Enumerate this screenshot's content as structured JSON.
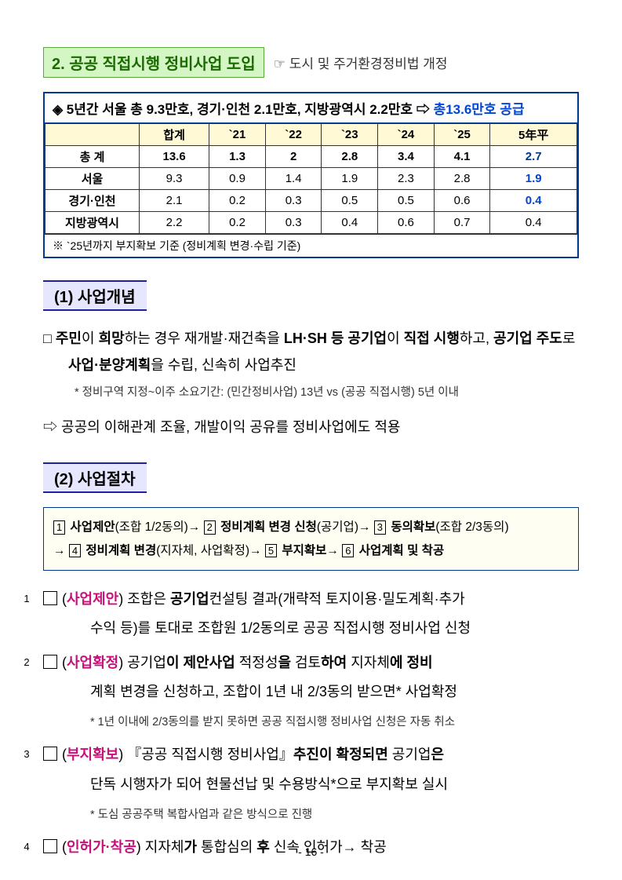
{
  "title": {
    "main": "2. 공공 직접시행 정비사업 도입",
    "sub_prefix": "☞",
    "sub": "도시 및 주거환경정비법 개정"
  },
  "summary": {
    "header_pre": "◈ 5년간 서울 총 9.3만호, 경기·인천 2.1만호, 지방광역시 2.2만호 ⇨ ",
    "header_em": "총13.6만호 공급",
    "columns": [
      "",
      "합계",
      "`21",
      "`22",
      "`23",
      "`24",
      "`25",
      "5年平"
    ],
    "rows": [
      {
        "label": "총 계",
        "vals": [
          "13.6",
          "1.3",
          "2",
          "2.8",
          "3.4",
          "4.1",
          "2.7"
        ],
        "bold": true,
        "avgClass": "avg"
      },
      {
        "label": "서울",
        "vals": [
          "9.3",
          "0.9",
          "1.4",
          "1.9",
          "2.3",
          "2.8",
          "1.9"
        ],
        "avgClass": "blue-bold"
      },
      {
        "label": "경기·인천",
        "vals": [
          "2.1",
          "0.2",
          "0.3",
          "0.5",
          "0.5",
          "0.6",
          "0.4"
        ],
        "avgClass": "blue-bold"
      },
      {
        "label": "지방광역시",
        "vals": [
          "2.2",
          "0.2",
          "0.3",
          "0.4",
          "0.6",
          "0.7",
          "0.4"
        ],
        "avgClass": ""
      }
    ],
    "note": "※ `25년까지 부지확보 기준 (정비계획 변경·수립 기준)"
  },
  "sec1": {
    "head": "(1) 사업개념",
    "p1_parts": [
      "□ ",
      "주민",
      "이 ",
      "희망",
      "하는 경우 재개발·재건축을 ",
      "LH·SH 등 공기업",
      "이 ",
      "직접 시행",
      "하고, ",
      "공기업 주도",
      "로 ",
      "사업·분양계획",
      "을 수립, 신속히 사업추진"
    ],
    "note1": "* 정비구역 지정~이주 소요기간: (민간정비사업) 13년 vs (공공 직접시행) 5년 이내",
    "p2_parts": [
      "⇨ ",
      "공공",
      "의 ",
      "이해관계 조율, 개발이익 공유",
      "를 ",
      "정비사업",
      "에도 적용"
    ]
  },
  "sec2": {
    "head": "(2) 사업절차",
    "flow": {
      "items": [
        {
          "n": "1",
          "b": "사업제안",
          "t": "(조합 1/2동의)→ "
        },
        {
          "n": "2",
          "b": "정비계획 변경 신청",
          "t": "(공기업)→ "
        },
        {
          "n": "3",
          "b": "동의확보",
          "t": "(조합 2/3동의)"
        },
        {
          "n": "4",
          "b": "정비계획 변경",
          "t": "(지자체, 사업확정)→ ",
          "pre": "→ "
        },
        {
          "n": "5",
          "b": "부지확보",
          "t": "→ "
        },
        {
          "n": "6",
          "b": "사업계획 및 착공",
          "t": ""
        }
      ]
    },
    "steps": [
      {
        "n": "1",
        "tag": "사업제안",
        "l1": [
          "조합은 ",
          "공기업",
          "컨설팅 결과(개략적 토지이용·밀도계획·추가"
        ],
        "l2": [
          "수익 등)를 토대로 ",
          "조합원 1/2동의",
          "로 공공 직접시행 정비사업 신청"
        ],
        "note": ""
      },
      {
        "n": "2",
        "tag": "사업확정",
        "l1": [
          "공기업",
          "이 제안사업 ",
          "적정성",
          "을 ",
          "검토",
          "하여 ",
          "지자체",
          "에 정비"
        ],
        "l2": [
          "계획 변경을 신청하고, ",
          "조합",
          "이 1년 내 ",
          "2/3동의",
          " 받으면* 사업확정"
        ],
        "note": "* 1년 이내에 2/3동의를 받지 못하면 공공 직접시행 정비사업 신청은 자동 취소"
      },
      {
        "n": "3",
        "tag": "부지확보",
        "l1": [
          "『공공 직접시행 정비사업』",
          "추진이 확정되면 ",
          "공기업",
          "은"
        ],
        "l2": [
          "단독 시행자",
          "가 되어 ",
          "현물선납 및 수용방식*",
          "으로 ",
          "부지확보 실시"
        ],
        "note": "* 도심 공공주택 복합사업과 같은 방식으로 진행"
      },
      {
        "n": "4",
        "tag": "인허가·착공",
        "l1": [
          "지자체",
          "가 ",
          "통합심의",
          " 후 ",
          "신속 인허가→ 착공"
        ],
        "l2": [],
        "note": ""
      }
    ]
  },
  "page": "- 16 -"
}
